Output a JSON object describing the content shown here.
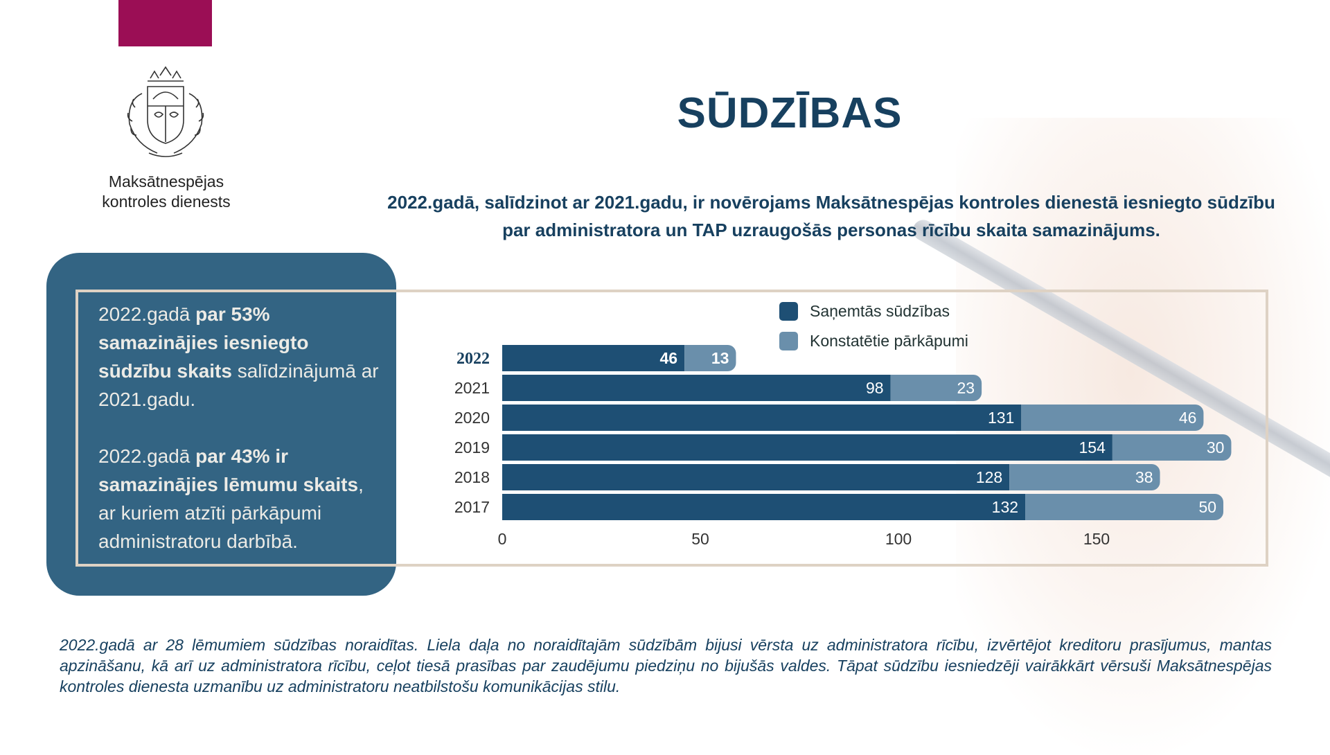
{
  "org_name_line1": "Maksātnespējas",
  "org_name_line2": "kontroles dienests",
  "title": "SŪDZĪBAS",
  "subtitle": "2022.gadā, salīdzinot ar 2021.gadu, ir novērojams Maksātnespējas kontroles dienestā iesniegto sūdzību par administratora un TAP uzraugošās personas rīcību skaita samazinājums.",
  "panel": {
    "p1_a": "2022.gadā ",
    "p1_b": "par 53% samazinājies iesniegto sūdzību skaits",
    "p1_c": " salīdzinājumā ar 2021.gadu.",
    "p2_a": "2022.gadā ",
    "p2_b": "par 43% ir samazinājies lēmumu skaits",
    "p2_c": ", ar kuriem atzīti pārkāpumi administratoru darbībā."
  },
  "footnote": "2022.gadā ar 28 lēmumiem sūdzības noraidītas. Liela daļa no noraidītajām sūdzībām bijusi vērsta uz administratora rīcību, izvērtējot kreditoru prasījumus, mantas apzināšanu, kā arī uz administratora rīcību, ceļot tiesā prasības par zaudējumu piedziņu no bijušās valdes. Tāpat sūdzību iesniedzēji vairākkārt vērsuši Maksātnespējas kontroles dienesta uzmanību uz administratoru neatbilstošu komunikācijas stilu.",
  "colors": {
    "accent": "#9b0e55",
    "navy": "#17405f",
    "panel": "#336483",
    "series_received": "#1e4f74",
    "series_violations": "#6a8fab",
    "frame": "#ded2c4"
  },
  "chart_data": {
    "type": "bar",
    "orientation": "horizontal",
    "stacked": true,
    "categories": [
      "2022",
      "2021",
      "2020",
      "2019",
      "2018",
      "2017"
    ],
    "series": [
      {
        "name": "Saņemtās sūdzības",
        "values": [
          46,
          98,
          131,
          154,
          128,
          132
        ]
      },
      {
        "name": "Konstatētie pārkāpumi",
        "values": [
          13,
          23,
          46,
          30,
          38,
          50
        ]
      }
    ],
    "xticks": [
      0,
      50,
      100,
      150
    ],
    "xlim": [
      0,
      200
    ],
    "legend_position": "top-right",
    "grid": false
  }
}
